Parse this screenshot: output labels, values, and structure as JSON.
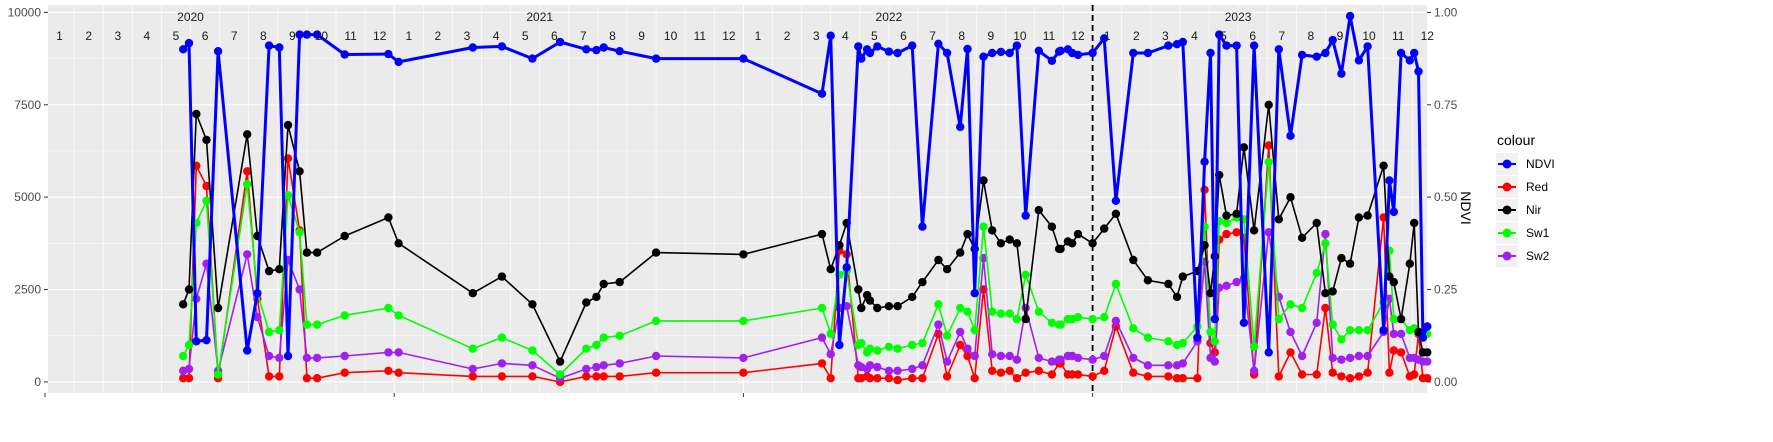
{
  "chart_data": {
    "type": "line",
    "start": "2020-01",
    "months": 48,
    "year_labels": [
      {
        "label": "2020",
        "index": 5
      },
      {
        "label": "2021",
        "index": 17
      },
      {
        "label": "2022",
        "index": 29
      },
      {
        "label": "2023",
        "index": 41
      }
    ],
    "month_labels": [
      "1",
      "2",
      "3",
      "4",
      "5",
      "6",
      "7",
      "8",
      "9",
      "10",
      "11",
      "12",
      "1",
      "2",
      "3",
      "4",
      "5",
      "6",
      "7",
      "8",
      "9",
      "10",
      "11",
      "12",
      "1",
      "2",
      "3",
      "4",
      "5",
      "6",
      "7",
      "8",
      "9",
      "10",
      "11",
      "12",
      "1",
      "2",
      "3",
      "4",
      "5",
      "6",
      "7",
      "8",
      "9",
      "10",
      "11",
      "12"
    ],
    "ylim": [
      -300,
      10200
    ],
    "y_ticks": [
      0,
      2500,
      5000,
      7500,
      10000
    ],
    "y2_ticks": [
      "0.00",
      "0.25",
      "0.50",
      "0.75",
      "1.00"
    ],
    "y2label": "NDVI",
    "vline_x": 36.0,
    "legend": {
      "title": "colour",
      "position": "right"
    },
    "colors": {
      "NDVI": "#0000FF",
      "Red": "#FF0000",
      "Nir": "#000000",
      "Sw1": "#00FF00",
      "Sw2": "#A020F0"
    },
    "series": [
      {
        "name": "Nir",
        "x": [
          4.75,
          4.95,
          5.2,
          5.55,
          5.95,
          6.95,
          7.3,
          7.7,
          8.05,
          8.35,
          8.75,
          9.0,
          9.35,
          10.3,
          11.8,
          12.15,
          14.7,
          15.7,
          16.75,
          17.7,
          18.6,
          18.95,
          19.2,
          19.75,
          21.0,
          24.0,
          26.7,
          27.0,
          27.3,
          27.55,
          27.95,
          28.05,
          28.25,
          28.35,
          28.6,
          29.0,
          29.3,
          29.8,
          30.15,
          30.7,
          31.0,
          31.45,
          31.7,
          31.95,
          32.25,
          32.55,
          32.85,
          33.15,
          33.4,
          33.7,
          34.15,
          34.6,
          34.85,
          34.9,
          35.15,
          35.3,
          35.5,
          36.0,
          36.4,
          36.8,
          37.4,
          37.9,
          38.6,
          38.9,
          39.1,
          39.6,
          39.85,
          40.05,
          40.2,
          40.35,
          40.6,
          40.95,
          41.2,
          41.55,
          42.05,
          42.4,
          42.8,
          43.2,
          43.7,
          44.0,
          44.25,
          44.55,
          44.85,
          45.15,
          45.45,
          46.0,
          46.2,
          46.35,
          46.6,
          46.9,
          47.05,
          47.2,
          47.35,
          47.5
        ],
        "values": [
          2100,
          2500,
          7250,
          6550,
          2000,
          6700,
          3950,
          3000,
          3050,
          6950,
          5700,
          3500,
          3500,
          3950,
          4450,
          3750,
          2400,
          2850,
          2100,
          550,
          2150,
          2300,
          2650,
          2700,
          3500,
          3450,
          4000,
          3050,
          3700,
          4300,
          2500,
          2000,
          2350,
          2200,
          2000,
          2050,
          2050,
          2300,
          2700,
          3300,
          3050,
          3500,
          4000,
          3600,
          5450,
          4100,
          3750,
          3850,
          3750,
          1700,
          4650,
          4200,
          3600,
          3600,
          3800,
          3750,
          4000,
          3750,
          4150,
          4550,
          3300,
          2750,
          2650,
          2300,
          2850,
          3000,
          3700,
          2400,
          3400,
          5600,
          4500,
          4550,
          6350,
          4100,
          7500,
          4400,
          5000,
          3900,
          4300,
          2400,
          2450,
          3350,
          3200,
          4450,
          4500,
          5850,
          2850,
          2700,
          1700,
          3200,
          4300,
          1350,
          800,
          800
        ]
      },
      {
        "name": "Red",
        "x": [
          4.75,
          4.95,
          5.2,
          5.55,
          5.95,
          6.95,
          7.3,
          7.7,
          8.05,
          8.35,
          8.75,
          9.0,
          9.35,
          10.3,
          11.8,
          12.15,
          14.7,
          15.7,
          16.75,
          17.7,
          18.6,
          18.95,
          19.2,
          19.75,
          21.0,
          24.0,
          26.7,
          27.0,
          27.3,
          27.55,
          27.95,
          28.05,
          28.25,
          28.35,
          28.6,
          29.0,
          29.3,
          29.8,
          30.15,
          30.7,
          31.0,
          31.45,
          31.7,
          31.95,
          32.25,
          32.55,
          32.85,
          33.15,
          33.4,
          33.7,
          34.15,
          34.6,
          34.85,
          34.9,
          35.15,
          35.3,
          35.5,
          36.0,
          36.4,
          36.8,
          37.4,
          37.9,
          38.6,
          38.9,
          39.1,
          39.6,
          39.85,
          40.05,
          40.2,
          40.35,
          40.6,
          40.95,
          41.2,
          41.55,
          42.05,
          42.4,
          42.8,
          43.2,
          43.7,
          44.0,
          44.25,
          44.55,
          44.85,
          45.15,
          45.45,
          46.0,
          46.2,
          46.35,
          46.6,
          46.9,
          47.05,
          47.2,
          47.35,
          47.5
        ],
        "values": [
          100,
          100,
          5850,
          5300,
          100,
          5700,
          2250,
          150,
          150,
          6050,
          4100,
          100,
          100,
          250,
          300,
          250,
          150,
          150,
          150,
          0,
          150,
          150,
          150,
          150,
          250,
          250,
          500,
          100,
          3550,
          3450,
          100,
          100,
          150,
          100,
          100,
          100,
          50,
          100,
          100,
          1300,
          150,
          1000,
          700,
          100,
          2500,
          300,
          250,
          300,
          100,
          250,
          300,
          200,
          500,
          500,
          200,
          200,
          200,
          150,
          300,
          1500,
          250,
          150,
          150,
          100,
          100,
          100,
          5200,
          1050,
          800,
          3850,
          4000,
          4050,
          3900,
          200,
          6400,
          150,
          800,
          200,
          200,
          2000,
          250,
          150,
          100,
          150,
          250,
          4450,
          250,
          850,
          800,
          150,
          200,
          1300,
          100,
          100
        ]
      },
      {
        "name": "Sw1",
        "x": [
          4.75,
          4.95,
          5.2,
          5.55,
          5.95,
          6.95,
          7.3,
          7.7,
          8.05,
          8.35,
          8.75,
          9.0,
          9.35,
          10.3,
          11.8,
          12.15,
          14.7,
          15.7,
          16.75,
          17.7,
          18.6,
          18.95,
          19.2,
          19.75,
          21.0,
          24.0,
          26.7,
          27.0,
          27.3,
          27.55,
          27.95,
          28.05,
          28.25,
          28.35,
          28.6,
          29.0,
          29.3,
          29.8,
          30.15,
          30.7,
          31.0,
          31.45,
          31.7,
          31.95,
          32.25,
          32.55,
          32.85,
          33.15,
          33.4,
          33.7,
          34.15,
          34.6,
          34.85,
          34.9,
          35.15,
          35.3,
          35.5,
          36.0,
          36.4,
          36.8,
          37.4,
          37.9,
          38.6,
          38.9,
          39.1,
          39.6,
          39.85,
          40.05,
          40.2,
          40.35,
          40.6,
          40.95,
          41.2,
          41.55,
          42.05,
          42.4,
          42.8,
          43.2,
          43.7,
          44.0,
          44.25,
          44.55,
          44.85,
          45.15,
          45.45,
          46.0,
          46.2,
          46.35,
          46.6,
          46.9,
          47.05,
          47.2,
          47.35,
          47.5
        ],
        "values": [
          700,
          1000,
          4300,
          4900,
          200,
          5350,
          2400,
          1350,
          1400,
          5050,
          4050,
          1550,
          1550,
          1800,
          2000,
          1800,
          900,
          1200,
          850,
          200,
          900,
          1000,
          1200,
          1250,
          1650,
          1650,
          2000,
          1300,
          2900,
          3000,
          1000,
          1050,
          800,
          900,
          850,
          950,
          900,
          1000,
          1050,
          2100,
          1250,
          2000,
          1900,
          1400,
          4200,
          1900,
          1850,
          1850,
          1700,
          2900,
          1900,
          1600,
          1550,
          1550,
          1700,
          1700,
          1750,
          1700,
          1750,
          2650,
          1450,
          1200,
          1100,
          1000,
          1050,
          1500,
          4200,
          1350,
          1100,
          4350,
          4300,
          4450,
          4400,
          950,
          5950,
          1700,
          2100,
          2000,
          2950,
          3750,
          1550,
          1150,
          1400,
          1400,
          1400,
          2150,
          3550,
          1700,
          1700,
          1400,
          1450,
          1350,
          1300,
          1300
        ]
      },
      {
        "name": "Sw2",
        "x": [
          4.75,
          4.95,
          5.2,
          5.55,
          5.95,
          6.95,
          7.3,
          7.7,
          8.05,
          8.35,
          8.75,
          9.0,
          9.35,
          10.3,
          11.8,
          12.15,
          14.7,
          15.7,
          16.75,
          17.7,
          18.6,
          18.95,
          19.2,
          19.75,
          21.0,
          24.0,
          26.7,
          27.0,
          27.3,
          27.55,
          27.95,
          28.05,
          28.25,
          28.35,
          28.6,
          29.0,
          29.3,
          29.8,
          30.15,
          30.7,
          31.0,
          31.45,
          31.7,
          31.95,
          32.25,
          32.55,
          32.85,
          33.15,
          33.4,
          33.7,
          34.15,
          34.6,
          34.85,
          34.9,
          35.15,
          35.3,
          35.5,
          36.0,
          36.4,
          36.8,
          37.4,
          37.9,
          38.6,
          38.9,
          39.1,
          39.6,
          39.85,
          40.05,
          40.2,
          40.35,
          40.6,
          40.95,
          41.2,
          41.55,
          42.05,
          42.4,
          42.8,
          43.2,
          43.7,
          44.0,
          44.25,
          44.55,
          44.85,
          45.15,
          45.45,
          46.0,
          46.2,
          46.35,
          46.6,
          46.9,
          47.05,
          47.2,
          47.35,
          47.5
        ],
        "values": [
          300,
          350,
          2250,
          3200,
          300,
          3450,
          1750,
          700,
          650,
          3300,
          2500,
          650,
          650,
          700,
          800,
          800,
          350,
          500,
          450,
          100,
          350,
          400,
          450,
          500,
          700,
          650,
          1200,
          750,
          2000,
          2050,
          450,
          400,
          350,
          450,
          400,
          300,
          300,
          350,
          450,
          1550,
          550,
          1350,
          900,
          700,
          3350,
          750,
          700,
          700,
          600,
          2000,
          650,
          550,
          600,
          600,
          700,
          700,
          650,
          600,
          700,
          1650,
          650,
          450,
          450,
          450,
          500,
          1100,
          3250,
          650,
          550,
          2550,
          2600,
          2700,
          2800,
          300,
          4050,
          2300,
          1350,
          700,
          1600,
          4000,
          650,
          600,
          650,
          700,
          700,
          1350,
          2250,
          1300,
          1300,
          650,
          650,
          600,
          550,
          550
        ]
      },
      {
        "name": "NDVI",
        "x": [
          4.75,
          4.95,
          5.2,
          5.55,
          5.95,
          6.95,
          7.3,
          7.7,
          8.05,
          8.35,
          8.75,
          9.0,
          9.35,
          10.3,
          11.8,
          12.15,
          14.7,
          15.7,
          16.75,
          17.7,
          18.6,
          18.95,
          19.2,
          19.75,
          21.0,
          24.0,
          26.7,
          27.0,
          27.3,
          27.55,
          27.95,
          28.05,
          28.25,
          28.35,
          28.6,
          29.0,
          29.3,
          29.8,
          30.15,
          30.7,
          31.0,
          31.45,
          31.7,
          31.95,
          32.25,
          32.55,
          32.85,
          33.15,
          33.4,
          33.7,
          34.15,
          34.6,
          34.85,
          34.9,
          35.15,
          35.3,
          35.5,
          36.0,
          36.4,
          36.8,
          37.4,
          37.9,
          38.6,
          38.9,
          39.1,
          39.6,
          39.85,
          40.05,
          40.2,
          40.35,
          40.6,
          40.95,
          41.2,
          41.55,
          42.05,
          42.4,
          42.8,
          43.2,
          43.7,
          44.0,
          44.25,
          44.55,
          44.85,
          45.15,
          45.45,
          46.0,
          46.2,
          46.35,
          46.6,
          46.9,
          47.05,
          47.2,
          47.35,
          47.5
        ],
        "values": [
          0.9,
          0.917,
          0.11,
          0.113,
          0.895,
          0.085,
          0.24,
          0.91,
          0.905,
          0.07,
          0.94,
          0.94,
          0.94,
          0.886,
          0.887,
          0.866,
          0.905,
          0.908,
          0.875,
          0.92,
          0.9,
          0.898,
          0.905,
          0.895,
          0.875,
          0.875,
          0.78,
          0.937,
          0.1,
          0.31,
          0.908,
          0.875,
          0.9,
          0.89,
          0.908,
          0.894,
          0.89,
          0.91,
          0.42,
          0.915,
          0.89,
          0.69,
          0.901,
          0.24,
          0.88,
          0.89,
          0.893,
          0.89,
          0.91,
          0.45,
          0.896,
          0.869,
          0.894,
          0.896,
          0.9,
          0.89,
          0.885,
          0.89,
          0.93,
          0.49,
          0.89,
          0.89,
          0.91,
          0.914,
          0.92,
          0.12,
          0.596,
          0.89,
          0.17,
          0.94,
          0.91,
          0.91,
          0.16,
          0.91,
          0.08,
          0.9,
          0.666,
          0.885,
          0.88,
          0.89,
          0.925,
          0.834,
          0.99,
          0.87,
          0.908,
          0.14,
          0.545,
          0.46,
          0.89,
          0.87,
          0.89,
          0.84,
          0.12,
          0.15
        ]
      }
    ]
  }
}
